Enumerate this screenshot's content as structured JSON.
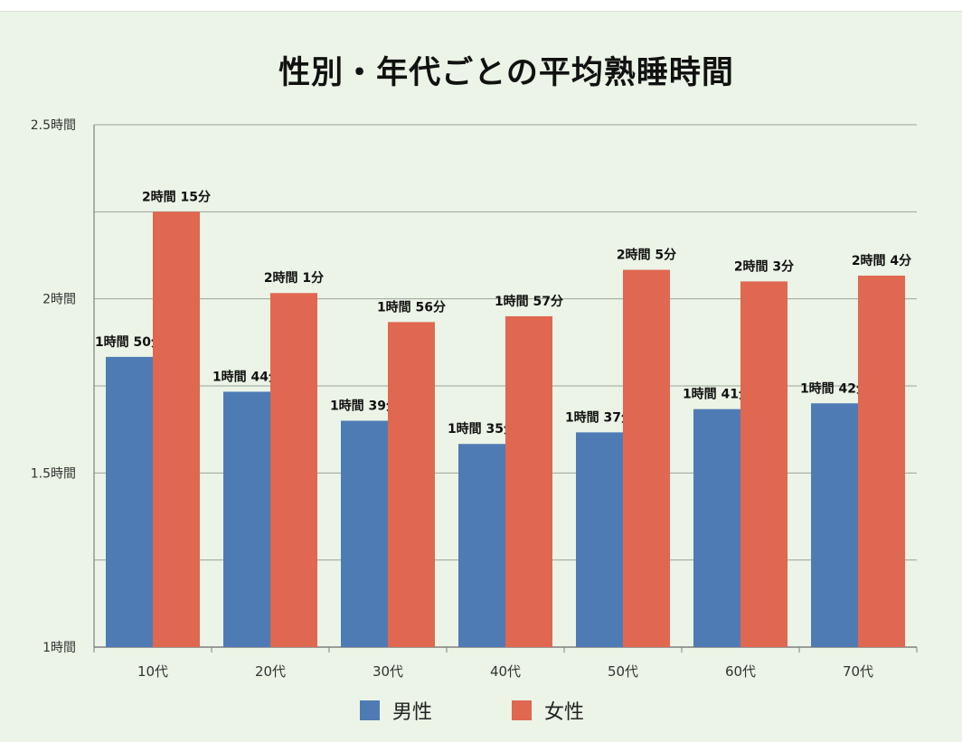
{
  "chart_data": {
    "type": "bar",
    "title": "性別・年代ごとの平均熟睡時間",
    "categories": [
      "10代",
      "20代",
      "30代",
      "40代",
      "50代",
      "60代",
      "70代"
    ],
    "series": [
      {
        "name": "男性",
        "color": "#4f7bb5",
        "values": [
          110,
          104,
          99,
          95,
          97,
          101,
          102
        ],
        "labels": [
          "1時間 50分",
          "1時間 44分",
          "1時間 39分",
          "1時間 35分",
          "1時間 37分",
          "1時間 41分",
          "1時間 42分"
        ]
      },
      {
        "name": "女性",
        "color": "#e06750",
        "values": [
          135,
          121,
          116,
          117,
          125,
          123,
          124
        ],
        "labels": [
          "2時間 15分",
          "2時間 1分",
          "1時間 56分",
          "1時間 57分",
          "2時間 5分",
          "2時間 3分",
          "2時間 4分"
        ]
      }
    ],
    "y_ticks": [
      {
        "value": 60,
        "label": "1時間"
      },
      {
        "value": 90,
        "label": "1.5時間"
      },
      {
        "value": 120,
        "label": "2時間"
      },
      {
        "value": 150,
        "label": "2.5時間"
      }
    ],
    "ylim": [
      60,
      150
    ],
    "y_unit": "minutes",
    "grid": true,
    "legend_position": "bottom"
  }
}
